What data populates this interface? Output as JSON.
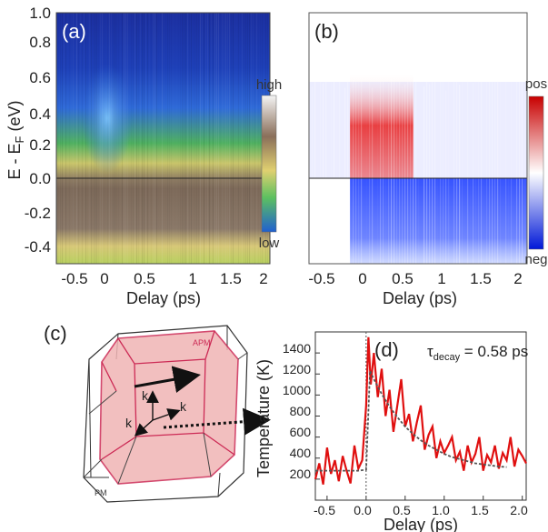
{
  "panel_a": {
    "label": "(a)",
    "ylabel": "E - E",
    "ylabel_sub": "F",
    "ylabel_unit": " (eV)",
    "yticks": [
      "1.0",
      "0.8",
      "0.6",
      "0.4",
      "0.2",
      "0.0",
      "-0.2",
      "-0.4"
    ],
    "xticks": [
      "-0.5",
      "0",
      "0.5",
      "1",
      "1.5",
      "2"
    ],
    "colorbar_high": "high",
    "colorbar_low": "low"
  },
  "panel_b": {
    "label": "(b)",
    "xticks": [
      "-0.5",
      "0",
      "0.5",
      "1",
      "1.5",
      "2"
    ],
    "colorbar_pos": "pos",
    "colorbar_neg": "neg"
  },
  "shared_xlabel": "Delay (ps)",
  "panel_c": {
    "label": "(c)",
    "bz_label_top": "APM",
    "bz_label_bottom": "PM",
    "kx": "k",
    "ky": "k",
    "kz": "k"
  },
  "panel_d": {
    "label": "(d)",
    "annotation_tau": "τ",
    "annotation_sub": "decay",
    "annotation_value": " = 0.58 ps",
    "ylabel": "Temperature (K)",
    "xlabel": "Delay (ps)",
    "yticks": [
      "1400",
      "1200",
      "1000",
      "800",
      "600",
      "400",
      "200"
    ],
    "xticks": [
      "-0.5",
      "0.0",
      "0.5",
      "1.0",
      "1.5",
      "2.0"
    ]
  },
  "chart_data": [
    {
      "type": "heatmap",
      "panel": "(a)",
      "xlabel": "Delay (ps)",
      "ylabel": "E - EF (eV)",
      "xlim": [
        -1.0,
        2.1
      ],
      "ylim": [
        -0.58,
        1.0
      ],
      "colorscale": [
        "low",
        "high"
      ]
    },
    {
      "type": "heatmap",
      "panel": "(b)",
      "xlabel": "Delay (ps)",
      "xlim": [
        -0.6,
        2.05
      ],
      "colorscale": [
        "neg",
        "pos"
      ],
      "colors": {
        "pos": "#d81b1b",
        "neg": "#1a3cff"
      }
    },
    {
      "type": "line",
      "panel": "(d)",
      "xlabel": "Delay (ps)",
      "ylabel": "Temperature (K)",
      "xlim": [
        -0.65,
        2.05
      ],
      "ylim": [
        0,
        1600
      ],
      "series": [
        {
          "color": "#e01010",
          "x": [
            -0.65,
            -0.6,
            -0.55,
            -0.5,
            -0.45,
            -0.4,
            -0.35,
            -0.3,
            -0.25,
            -0.2,
            -0.15,
            -0.1,
            -0.05,
            0.0,
            0.03,
            0.06,
            0.1,
            0.15,
            0.2,
            0.25,
            0.3,
            0.35,
            0.4,
            0.45,
            0.5,
            0.55,
            0.6,
            0.65,
            0.7,
            0.75,
            0.8,
            0.85,
            0.9,
            0.95,
            1.0,
            1.05,
            1.1,
            1.15,
            1.2,
            1.25,
            1.3,
            1.35,
            1.4,
            1.45,
            1.5,
            1.55,
            1.6,
            1.65,
            1.7,
            1.75,
            1.8,
            1.85,
            1.9,
            1.95,
            2.0,
            2.05
          ],
          "y": [
            200,
            350,
            150,
            500,
            250,
            380,
            180,
            420,
            280,
            160,
            520,
            300,
            380,
            900,
            1550,
            1100,
            1400,
            980,
            1250,
            800,
            1050,
            650,
            900,
            1150,
            700,
            820,
            560,
            740,
            900,
            480,
            620,
            700,
            400,
            560,
            450,
            520,
            600,
            380,
            460,
            280,
            520,
            360,
            440,
            600,
            280,
            430,
            360,
            520,
            300,
            450,
            380,
            600,
            320,
            480,
            420,
            350
          ]
        },
        {
          "color": "#555555",
          "x": [
            -0.65,
            -0.5,
            -0.4,
            -0.3,
            -0.2,
            -0.1,
            0.0,
            0.05,
            0.1,
            0.2,
            0.3,
            0.4,
            0.5,
            0.6,
            0.7,
            0.8,
            0.9,
            1.0,
            1.1,
            1.2,
            1.3,
            1.4,
            1.5,
            1.6,
            1.7,
            1.8
          ],
          "y": [
            280,
            280,
            280,
            280,
            280,
            280,
            290,
            1230,
            1150,
            1010,
            890,
            790,
            700,
            630,
            570,
            520,
            480,
            440,
            410,
            390,
            370,
            350,
            340,
            330,
            320,
            315
          ]
        }
      ]
    }
  ]
}
